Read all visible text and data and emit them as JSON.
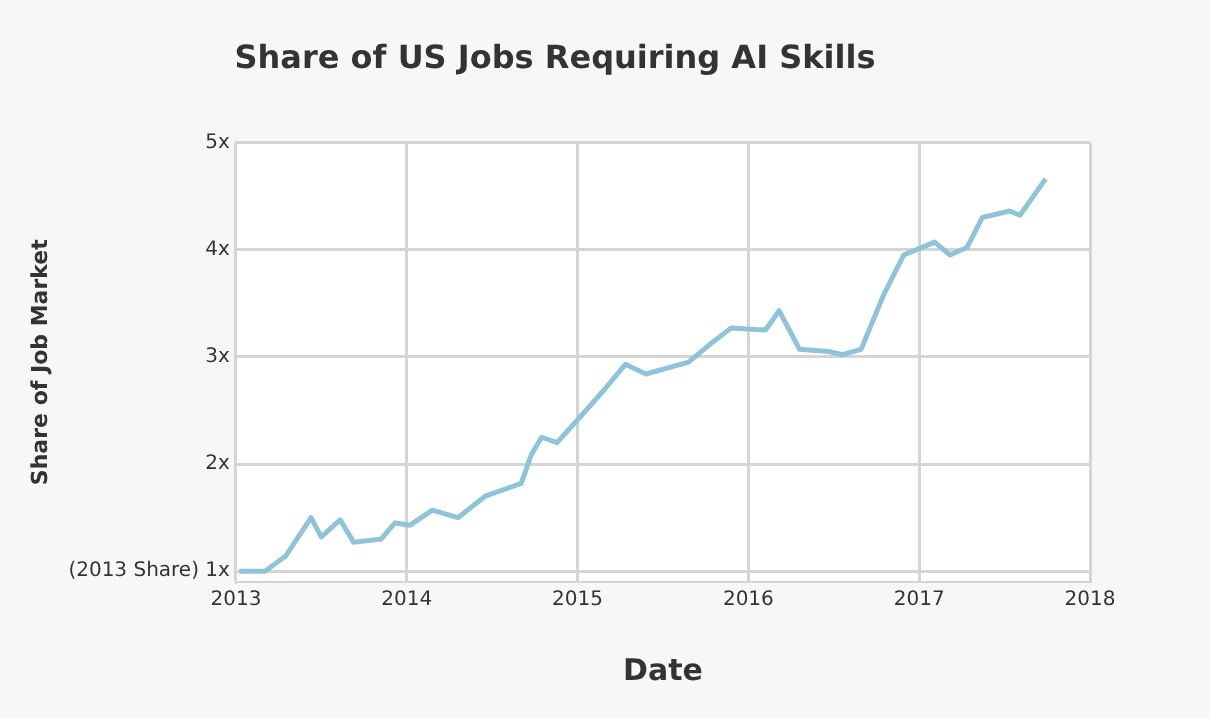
{
  "chart_data": {
    "type": "line",
    "title": "Share of US Jobs Requiring AI Skills",
    "xlabel": "Date",
    "ylabel": "Share of Job Market",
    "x": [
      2013.02,
      2013.17,
      2013.29,
      2013.44,
      2013.5,
      2013.61,
      2013.69,
      2013.85,
      2013.93,
      2014.02,
      2014.15,
      2014.3,
      2014.46,
      2014.67,
      2014.73,
      2014.79,
      2014.88,
      2015.01,
      2015.16,
      2015.28,
      2015.4,
      2015.65,
      2015.77,
      2015.9,
      2016.1,
      2016.18,
      2016.3,
      2016.47,
      2016.55,
      2016.66,
      2016.79,
      2016.91,
      2017.09,
      2017.18,
      2017.28,
      2017.37,
      2017.53,
      2017.59,
      2017.74
    ],
    "series": [
      {
        "color": "#8ec3d8",
        "values": [
          1.0,
          1.0,
          1.14,
          1.5,
          1.32,
          1.48,
          1.27,
          1.3,
          1.45,
          1.43,
          1.57,
          1.5,
          1.7,
          1.82,
          2.09,
          2.25,
          2.2,
          2.43,
          2.7,
          2.93,
          2.84,
          2.95,
          3.11,
          3.27,
          3.25,
          3.43,
          3.07,
          3.05,
          3.02,
          3.07,
          3.57,
          3.95,
          4.07,
          3.95,
          4.02,
          4.3,
          4.36,
          4.32,
          4.66
        ]
      }
    ],
    "xlim": [
      2013,
      2018
    ],
    "xticks": [
      2013,
      2014,
      2015,
      2016,
      2017,
      2018
    ],
    "ylim": [
      0.9,
      5
    ],
    "yticks": [
      {
        "value": 1,
        "label": "(2013 Share) 1x"
      },
      {
        "value": 2,
        "label": "2x"
      },
      {
        "value": 3,
        "label": "3x"
      },
      {
        "value": 4,
        "label": "4x"
      },
      {
        "value": 5,
        "label": "5x"
      }
    ],
    "grid": true,
    "legend": false,
    "marker": "none",
    "line_style": "solid"
  }
}
